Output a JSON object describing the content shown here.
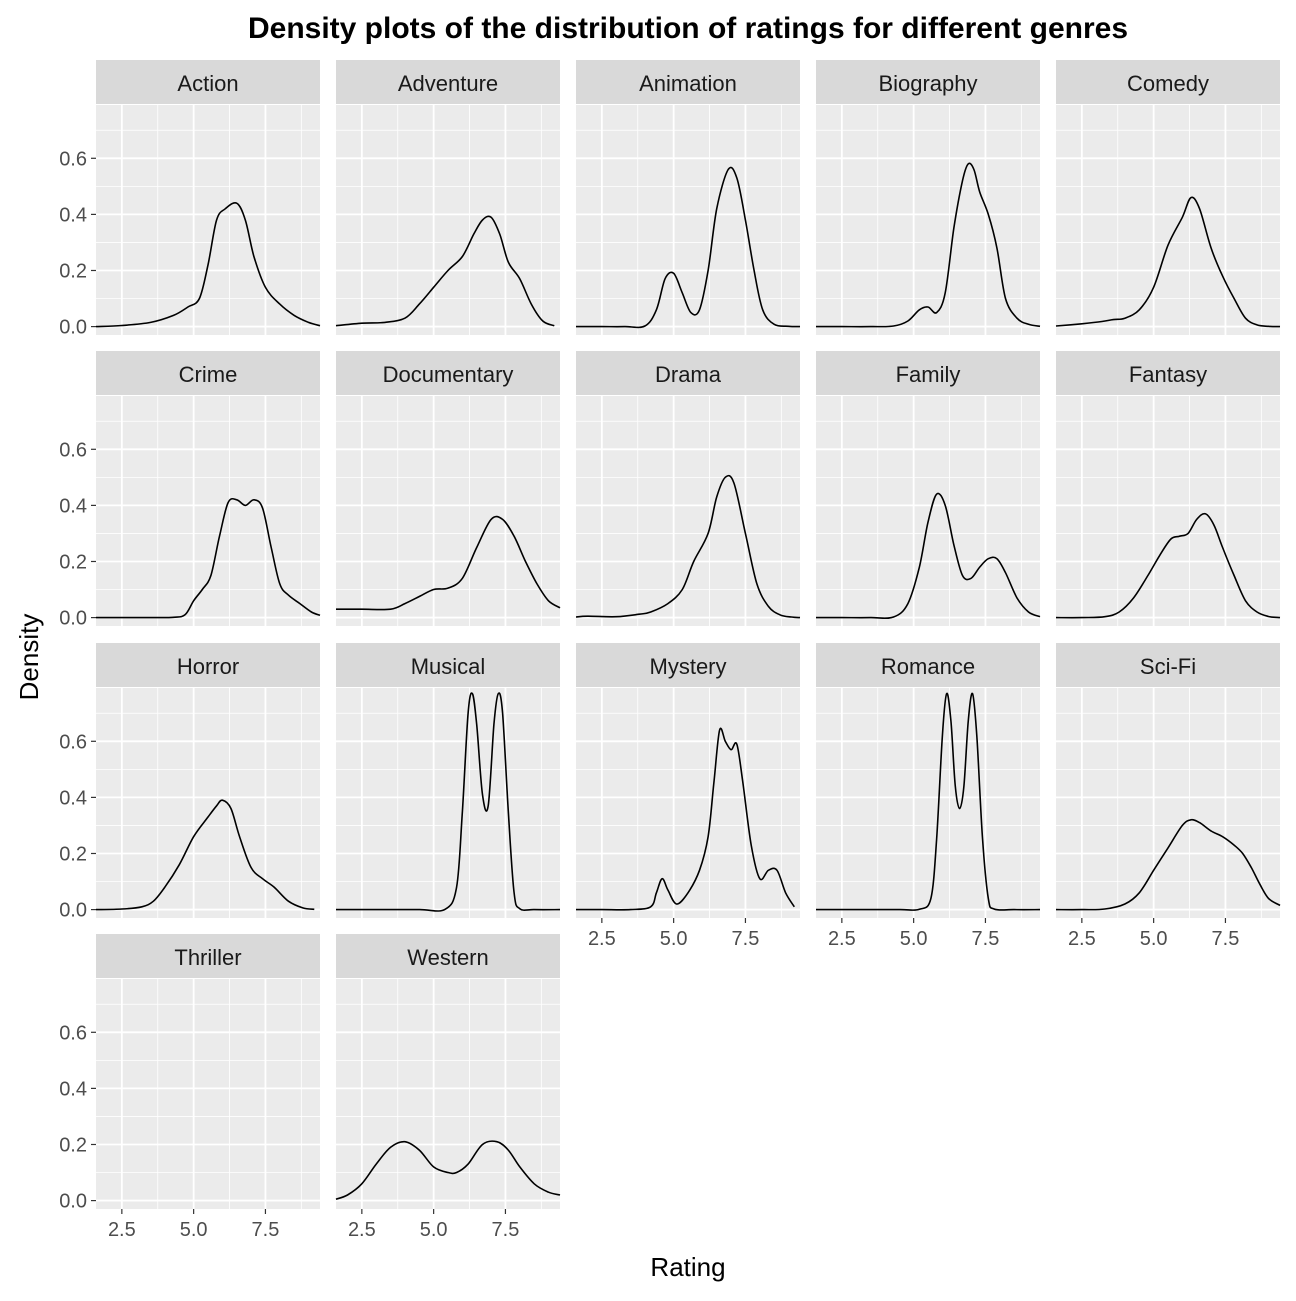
{
  "chart_data": {
    "type": "area",
    "title": "Density plots of the distribution of ratings for different genres",
    "xlabel": "Rating",
    "ylabel": "Density",
    "xlim": [
      1.6,
      9.4
    ],
    "ylim": [
      -0.03,
      0.79
    ],
    "x_ticks": [
      2.5,
      5.0,
      7.5
    ],
    "x_tick_labels": [
      "2.5",
      "5.0",
      "7.5"
    ],
    "y_ticks": [
      0.0,
      0.2,
      0.4,
      0.6
    ],
    "y_tick_labels": [
      "0.0",
      "0.2",
      "0.4",
      "0.6"
    ],
    "grid": true,
    "legend": "none",
    "facet_columns": 5,
    "colors": {
      "panel_background": "#ebebeb",
      "grid_major": "#ffffff",
      "strip_background": "#d9d9d9",
      "line": "#000000",
      "tick_text": "#4d4d4d"
    },
    "panels": [
      {
        "name": "Action",
        "x": [
          1.6,
          2.5,
          3.5,
          4.3,
          4.8,
          5.2,
          5.5,
          5.8,
          6.1,
          6.5,
          6.8,
          7.1,
          7.5,
          8.0,
          8.5,
          9.0,
          9.4
        ],
        "y": [
          0.0,
          0.004,
          0.015,
          0.04,
          0.07,
          0.1,
          0.22,
          0.38,
          0.42,
          0.44,
          0.38,
          0.25,
          0.14,
          0.08,
          0.04,
          0.015,
          0.003
        ]
      },
      {
        "name": "Adventure",
        "x": [
          1.6,
          2.5,
          3.3,
          4.0,
          4.5,
          5.0,
          5.5,
          6.0,
          6.4,
          6.7,
          7.0,
          7.3,
          7.6,
          8.0,
          8.4,
          8.8,
          9.2
        ],
        "y": [
          0.003,
          0.012,
          0.015,
          0.03,
          0.08,
          0.14,
          0.2,
          0.25,
          0.33,
          0.38,
          0.39,
          0.33,
          0.23,
          0.17,
          0.08,
          0.02,
          0.003
        ]
      },
      {
        "name": "Animation",
        "x": [
          1.6,
          2.5,
          3.3,
          4.0,
          4.4,
          4.7,
          5.0,
          5.3,
          5.6,
          5.9,
          6.2,
          6.5,
          6.9,
          7.2,
          7.5,
          7.8,
          8.1,
          8.5,
          9.0,
          9.4
        ],
        "y": [
          0.0,
          0.0,
          0.0,
          0.002,
          0.06,
          0.17,
          0.19,
          0.12,
          0.05,
          0.06,
          0.2,
          0.42,
          0.56,
          0.53,
          0.38,
          0.2,
          0.06,
          0.008,
          0.001,
          0.0
        ]
      },
      {
        "name": "Biography",
        "x": [
          1.6,
          2.5,
          3.5,
          4.3,
          4.8,
          5.2,
          5.5,
          5.8,
          6.1,
          6.4,
          6.7,
          6.9,
          7.1,
          7.3,
          7.6,
          7.9,
          8.2,
          8.6,
          9.0,
          9.4
        ],
        "y": [
          0.0,
          0.0,
          0.0,
          0.002,
          0.02,
          0.06,
          0.07,
          0.05,
          0.12,
          0.35,
          0.52,
          0.58,
          0.56,
          0.48,
          0.4,
          0.28,
          0.1,
          0.03,
          0.008,
          0.001
        ]
      },
      {
        "name": "Comedy",
        "x": [
          1.6,
          2.5,
          3.2,
          3.6,
          4.0,
          4.5,
          5.0,
          5.5,
          6.0,
          6.3,
          6.6,
          7.0,
          7.4,
          7.8,
          8.2,
          8.6,
          9.0,
          9.4
        ],
        "y": [
          0.002,
          0.01,
          0.018,
          0.025,
          0.03,
          0.06,
          0.14,
          0.29,
          0.39,
          0.46,
          0.42,
          0.28,
          0.18,
          0.1,
          0.03,
          0.006,
          0.001,
          0.0
        ]
      },
      {
        "name": "Crime",
        "x": [
          1.6,
          2.5,
          3.5,
          4.3,
          4.7,
          5.0,
          5.3,
          5.6,
          5.9,
          6.2,
          6.5,
          6.8,
          7.1,
          7.4,
          7.7,
          8.0,
          8.3,
          8.7,
          9.1,
          9.4
        ],
        "y": [
          0.0,
          0.0,
          0.0,
          0.001,
          0.01,
          0.06,
          0.1,
          0.15,
          0.29,
          0.41,
          0.42,
          0.4,
          0.42,
          0.39,
          0.25,
          0.12,
          0.08,
          0.05,
          0.02,
          0.008
        ]
      },
      {
        "name": "Documentary",
        "x": [
          1.6,
          2.5,
          3.5,
          4.0,
          4.5,
          5.0,
          5.5,
          6.0,
          6.5,
          7.0,
          7.4,
          7.8,
          8.2,
          8.6,
          9.0,
          9.4
        ],
        "y": [
          0.03,
          0.03,
          0.03,
          0.05,
          0.075,
          0.1,
          0.105,
          0.14,
          0.25,
          0.35,
          0.35,
          0.29,
          0.2,
          0.12,
          0.06,
          0.035
        ]
      },
      {
        "name": "Drama",
        "x": [
          1.6,
          2.0,
          3.0,
          3.8,
          4.2,
          4.8,
          5.3,
          5.7,
          6.2,
          6.5,
          6.8,
          7.1,
          7.5,
          7.9,
          8.3,
          8.7,
          9.1,
          9.4
        ],
        "y": [
          0.002,
          0.005,
          0.003,
          0.012,
          0.02,
          0.05,
          0.1,
          0.2,
          0.3,
          0.43,
          0.5,
          0.48,
          0.3,
          0.12,
          0.04,
          0.01,
          0.002,
          0.0
        ]
      },
      {
        "name": "Family",
        "x": [
          1.6,
          2.5,
          3.5,
          4.3,
          4.8,
          5.2,
          5.5,
          5.8,
          6.1,
          6.4,
          6.7,
          7.0,
          7.3,
          7.6,
          7.9,
          8.2,
          8.6,
          9.0,
          9.4
        ],
        "y": [
          0.0,
          0.0,
          0.0,
          0.002,
          0.05,
          0.18,
          0.34,
          0.44,
          0.4,
          0.26,
          0.15,
          0.14,
          0.18,
          0.21,
          0.21,
          0.16,
          0.07,
          0.02,
          0.003
        ]
      },
      {
        "name": "Fantasy",
        "x": [
          1.6,
          2.5,
          3.3,
          3.8,
          4.3,
          4.8,
          5.2,
          5.6,
          5.9,
          6.2,
          6.5,
          6.8,
          7.1,
          7.4,
          7.8,
          8.2,
          8.6,
          9.0,
          9.4
        ],
        "y": [
          0.0,
          0.0,
          0.003,
          0.02,
          0.07,
          0.15,
          0.22,
          0.28,
          0.29,
          0.3,
          0.35,
          0.37,
          0.33,
          0.25,
          0.15,
          0.06,
          0.02,
          0.004,
          0.0
        ]
      },
      {
        "name": "Horror",
        "x": [
          1.6,
          2.5,
          3.2,
          3.6,
          4.0,
          4.5,
          5.0,
          5.5,
          5.8,
          6.0,
          6.3,
          6.6,
          7.0,
          7.4,
          7.8,
          8.3,
          8.8,
          9.2
        ],
        "y": [
          0.0,
          0.002,
          0.01,
          0.03,
          0.08,
          0.16,
          0.26,
          0.33,
          0.37,
          0.39,
          0.36,
          0.26,
          0.15,
          0.11,
          0.08,
          0.03,
          0.006,
          0.001
        ]
      },
      {
        "name": "Musical",
        "x": [
          1.6,
          3.0,
          4.5,
          5.4,
          5.8,
          6.0,
          6.2,
          6.35,
          6.5,
          6.7,
          6.9,
          7.1,
          7.25,
          7.4,
          7.6,
          7.8,
          8.0,
          8.5,
          9.4
        ],
        "y": [
          0.0,
          0.0,
          0.0,
          0.001,
          0.08,
          0.35,
          0.7,
          0.77,
          0.66,
          0.41,
          0.37,
          0.66,
          0.77,
          0.7,
          0.35,
          0.06,
          0.003,
          0.0,
          0.0
        ]
      },
      {
        "name": "Mystery",
        "x": [
          1.6,
          2.5,
          3.5,
          4.2,
          4.4,
          4.6,
          4.8,
          5.1,
          5.5,
          5.9,
          6.2,
          6.4,
          6.6,
          6.8,
          7.0,
          7.2,
          7.4,
          7.7,
          8.0,
          8.3,
          8.6,
          8.9,
          9.2
        ],
        "y": [
          0.0,
          0.0,
          0.0,
          0.01,
          0.06,
          0.11,
          0.07,
          0.02,
          0.06,
          0.14,
          0.26,
          0.45,
          0.64,
          0.6,
          0.57,
          0.59,
          0.46,
          0.23,
          0.11,
          0.14,
          0.14,
          0.06,
          0.01
        ]
      },
      {
        "name": "Romance",
        "x": [
          1.6,
          3.0,
          4.5,
          5.2,
          5.6,
          5.8,
          6.0,
          6.15,
          6.3,
          6.45,
          6.6,
          6.75,
          6.9,
          7.05,
          7.2,
          7.4,
          7.6,
          7.8,
          8.5,
          9.4
        ],
        "y": [
          0.0,
          0.0,
          0.0,
          0.001,
          0.04,
          0.25,
          0.62,
          0.77,
          0.67,
          0.44,
          0.36,
          0.44,
          0.67,
          0.77,
          0.62,
          0.25,
          0.04,
          0.002,
          0.0,
          0.0
        ]
      },
      {
        "name": "Sci-Fi",
        "x": [
          1.6,
          2.5,
          3.3,
          4.0,
          4.5,
          5.0,
          5.5,
          6.0,
          6.3,
          6.6,
          7.0,
          7.4,
          7.8,
          8.1,
          8.4,
          8.7,
          9.0,
          9.4
        ],
        "y": [
          0.0,
          0.0,
          0.002,
          0.02,
          0.06,
          0.14,
          0.22,
          0.3,
          0.32,
          0.31,
          0.28,
          0.26,
          0.23,
          0.2,
          0.15,
          0.09,
          0.04,
          0.015
        ]
      },
      {
        "name": "Thriller",
        "x": [],
        "y": []
      },
      {
        "name": "Western",
        "x": [
          1.6,
          2.0,
          2.5,
          3.0,
          3.5,
          4.0,
          4.5,
          5.0,
          5.5,
          5.8,
          6.2,
          6.7,
          7.2,
          7.6,
          8.0,
          8.5,
          9.0,
          9.4
        ],
        "y": [
          0.005,
          0.02,
          0.06,
          0.13,
          0.19,
          0.21,
          0.18,
          0.12,
          0.1,
          0.1,
          0.13,
          0.2,
          0.21,
          0.18,
          0.12,
          0.06,
          0.03,
          0.02
        ]
      }
    ]
  }
}
